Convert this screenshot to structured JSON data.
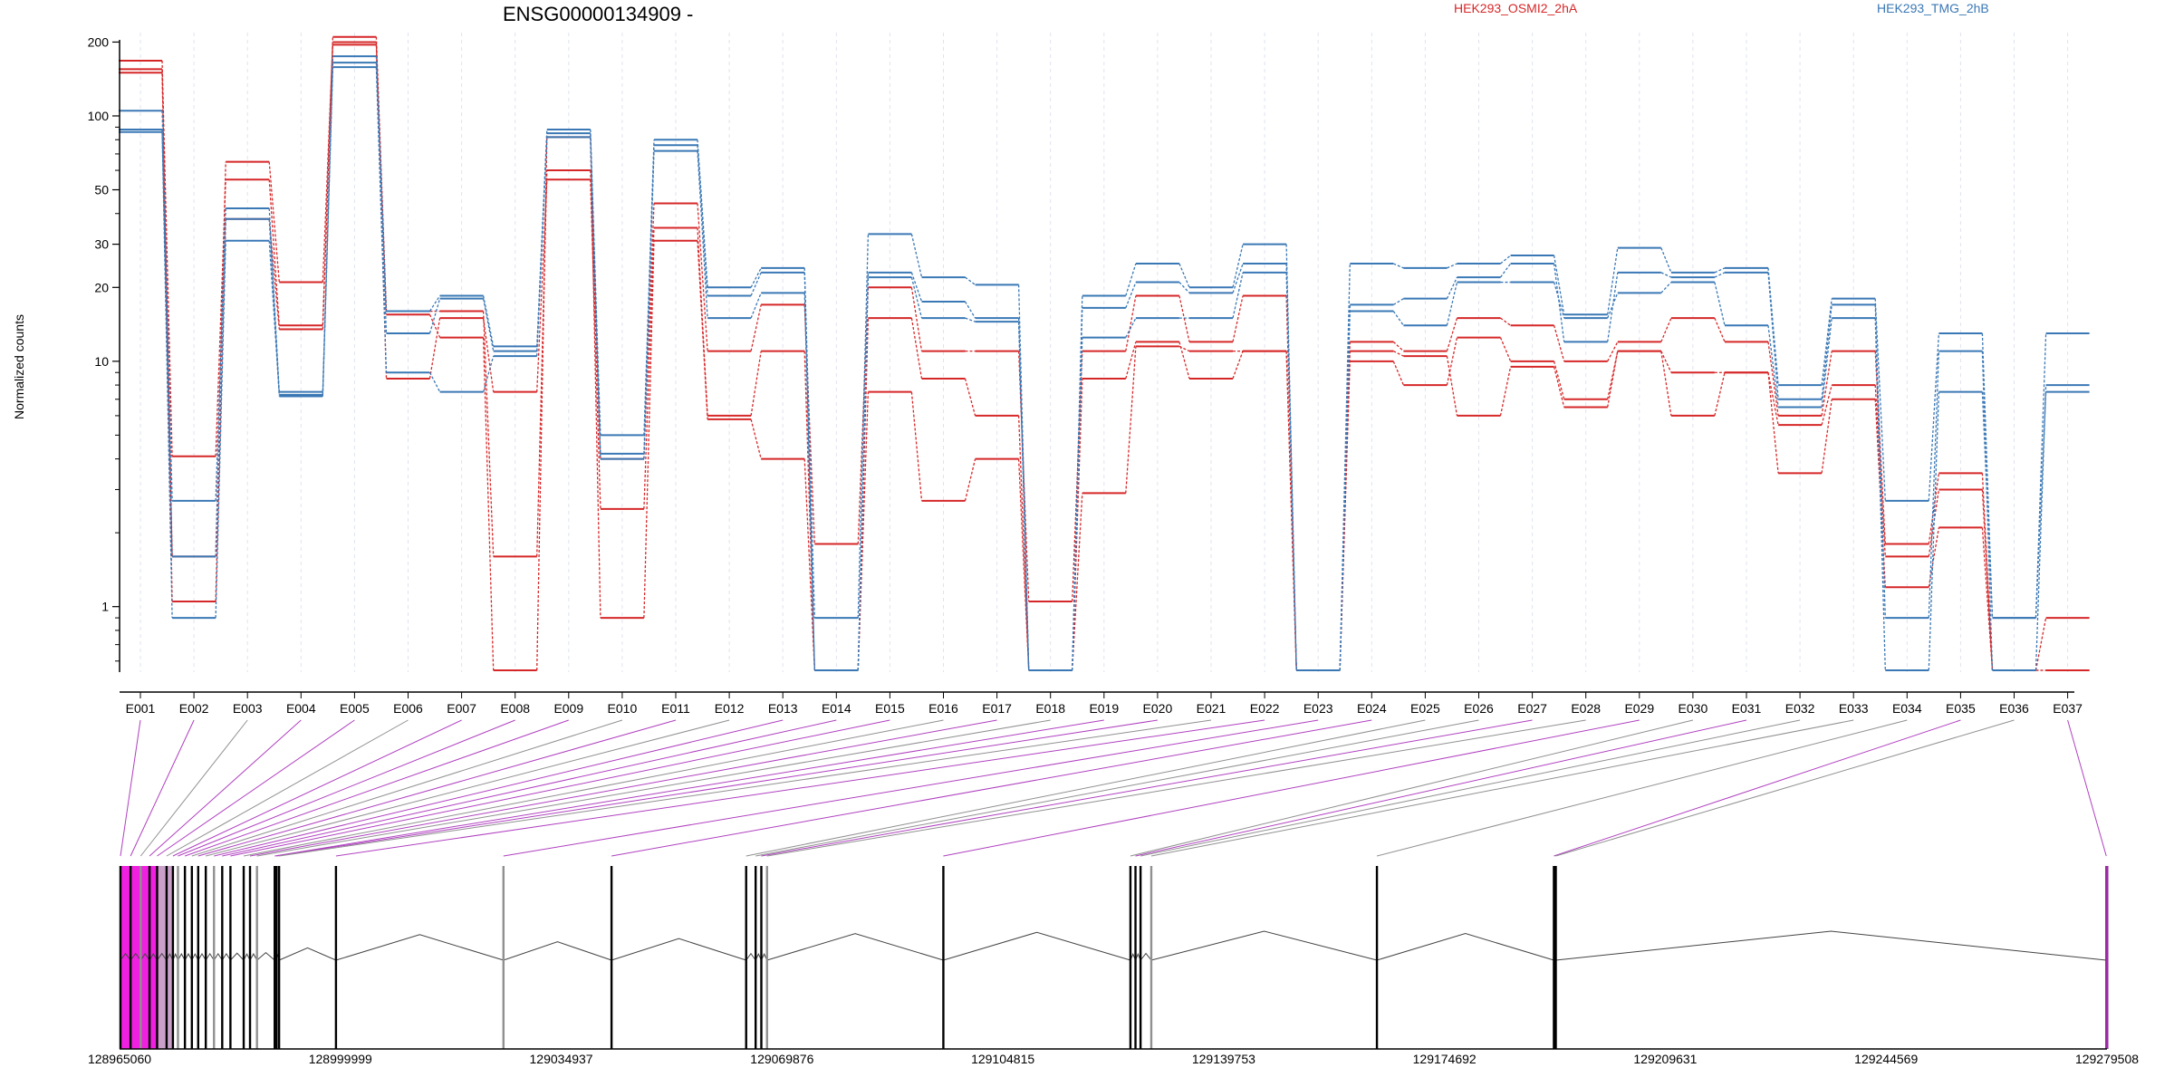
{
  "chart_data": {
    "type": "line",
    "title": "ENSG00000134909 -",
    "ylabel": "Normalized counts",
    "yscale": "log",
    "ylim": [
      0.55,
      230
    ],
    "yticks": [
      "1",
      "10",
      "20",
      "30",
      "50",
      "100",
      "200"
    ],
    "grid": "vertical dashed lines at exon centers",
    "legend_position": "top",
    "categories": [
      "E001",
      "E002",
      "E003",
      "E004",
      "E005",
      "E006",
      "E007",
      "E008",
      "E009",
      "E010",
      "E011",
      "E012",
      "E013",
      "E014",
      "E015",
      "E016",
      "E017",
      "E018",
      "E019",
      "E020",
      "E021",
      "E022",
      "E023",
      "E024",
      "E025",
      "E026",
      "E027",
      "E028",
      "E029",
      "E030",
      "E031",
      "E032",
      "E033",
      "E034",
      "E035",
      "E036",
      "E037"
    ],
    "series": [
      {
        "name": "HEK293_OSMI2_2hA",
        "group": "HEK293_OSMI2_2hA",
        "color": "#d62728",
        "values": [
          168,
          4.1,
          55,
          14,
          210,
          16,
          16,
          1.6,
          60,
          4,
          44,
          11,
          17,
          1.8,
          20,
          11,
          11,
          1.05,
          11,
          18.5,
          12,
          18.5,
          0.55,
          12,
          11,
          15,
          14,
          10,
          12,
          15,
          12,
          6,
          11,
          1.8,
          3.5,
          0.55,
          0.9
        ]
      },
      {
        "name": "HEK293_OSMI2_2hA",
        "group": "HEK293_OSMI2_2hA",
        "color": "#d62728",
        "values": [
          155,
          1.05,
          38,
          13.5,
          195,
          8.5,
          15,
          7.5,
          55,
          2.5,
          35,
          6,
          11,
          0.55,
          15,
          8.5,
          6,
          0.55,
          8.5,
          12,
          8.5,
          11,
          0.55,
          10,
          8,
          12.5,
          10,
          7,
          11,
          9,
          9,
          5.5,
          8,
          1.6,
          3,
          0.55,
          0.55
        ]
      },
      {
        "name": "HEK293_OSMI2_2hA",
        "group": "HEK293_OSMI2_2hA",
        "color": "#d62728",
        "values": [
          150,
          1.6,
          65,
          21,
          200,
          15.5,
          12.5,
          0.55,
          82,
          0.9,
          31,
          5.8,
          4,
          0.55,
          7.5,
          2.7,
          4,
          0.55,
          2.9,
          11.5,
          11,
          11,
          0.55,
          11,
          10.5,
          6,
          9.5,
          6.5,
          11,
          6,
          9,
          3.5,
          7,
          1.2,
          2.1,
          0.55,
          0.55
        ]
      },
      {
        "name": "HEK293_TMG_2hB",
        "group": "HEK293_TMG_2hB",
        "color": "#3a78b5",
        "values": [
          105,
          2.7,
          42,
          7.5,
          175,
          16,
          18.5,
          11.5,
          88,
          5,
          80,
          20,
          24,
          0.9,
          33,
          22,
          20.5,
          0.55,
          18.5,
          25,
          20,
          30,
          0.55,
          25,
          24,
          25,
          27,
          15.5,
          29,
          23,
          24,
          8,
          18,
          2.7,
          13,
          0.9,
          13
        ]
      },
      {
        "name": "HEK293_TMG_2hB",
        "group": "HEK293_TMG_2hB",
        "color": "#3a78b5",
        "values": [
          88,
          1.6,
          38,
          7.2,
          165,
          13,
          18,
          11,
          85,
          4.2,
          76,
          18.5,
          23,
          0.55,
          23,
          17.5,
          15,
          0.55,
          16.5,
          21,
          19,
          25,
          0.55,
          17,
          18,
          22,
          25,
          12,
          23,
          22,
          23,
          7,
          17,
          0.9,
          11,
          0.55,
          8
        ]
      },
      {
        "name": "HEK293_TMG_2hB",
        "group": "HEK293_TMG_2hB",
        "color": "#3a78b5",
        "values": [
          86,
          0.9,
          31,
          7.3,
          158,
          9,
          7.5,
          10.5,
          82,
          4,
          72,
          15,
          19,
          0.55,
          22,
          15,
          14.5,
          0.55,
          12.5,
          15,
          15,
          23,
          0.55,
          16,
          14,
          21,
          21,
          15,
          19,
          21,
          14,
          6.5,
          15,
          0.55,
          7.5,
          0.9,
          7.5
        ]
      }
    ],
    "genome": {
      "coord_ticks": [
        "128965060",
        "128999999",
        "129034937",
        "129069876",
        "129104815",
        "129139753",
        "129174692",
        "129209631",
        "129244569",
        "129279508"
      ],
      "coord_start": 128965060,
      "coord_end": 129279508,
      "highlight_color": "#f020e0",
      "connector_color_highlight": "#b040c0",
      "connector_color_normal": "#909090",
      "exon_highlighted": [
        true,
        true,
        false,
        true,
        true,
        false,
        true,
        true,
        true,
        false,
        true,
        false,
        true,
        true,
        true,
        false,
        true,
        false,
        true,
        true,
        false,
        true,
        true,
        true,
        false,
        false,
        true,
        false,
        true,
        false,
        true,
        false,
        false,
        false,
        true,
        false,
        true
      ],
      "exon_positions": [
        128965200,
        128966800,
        128968400,
        128969800,
        128971000,
        128972500,
        128973500,
        128974300,
        128975400,
        128976500,
        128977500,
        128978700,
        128980000,
        128981300,
        128982600,
        128984700,
        128985700,
        128986800,
        128989600,
        128989900,
        128990300,
        128999300,
        129025800,
        129042900,
        129064200,
        129065700,
        129066600,
        129067500,
        129095400,
        129125000,
        129125800,
        129126600,
        129128300,
        129164000,
        129192000,
        129192300,
        129279400
      ]
    }
  }
}
